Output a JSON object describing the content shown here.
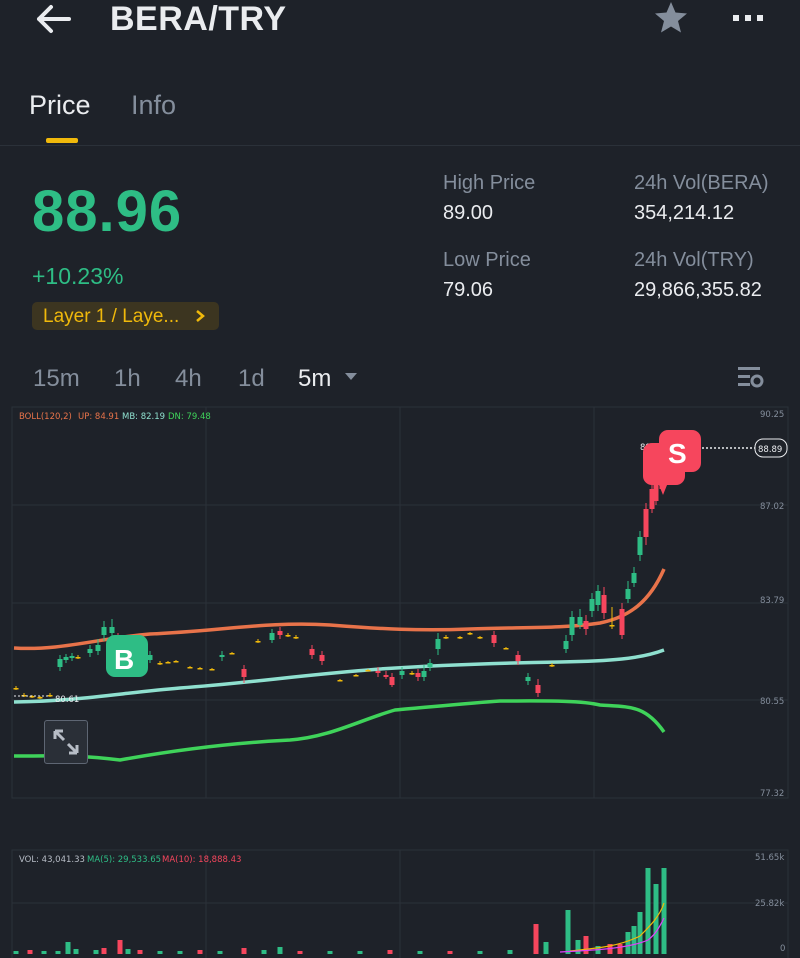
{
  "header": {
    "title": "BERA/TRY",
    "back_icon": "arrow-left-icon",
    "favorite_icon": "star-icon",
    "more_icon": "more-horizontal-icon"
  },
  "tabs": [
    {
      "label": "Price",
      "active": true
    },
    {
      "label": "Info",
      "active": false
    }
  ],
  "ticker": {
    "last_price": "88.96",
    "change_pct": "+10.23%",
    "tag": "Layer 1 / Laye...",
    "high_label": "High Price",
    "high_value": "89.00",
    "low_label": "Low Price",
    "low_value": "79.06",
    "vol_base_label": "24h Vol(BERA)",
    "vol_base_value": "354,214.12",
    "vol_quote_label": "24h Vol(TRY)",
    "vol_quote_value": "29,866,355.82"
  },
  "intervals": [
    "15m",
    "1h",
    "4h",
    "1d",
    "5m"
  ],
  "selected_interval": "5m",
  "chart_legend": {
    "boll": "BOLL(120,2)",
    "up": "UP: 84.91",
    "mb": "MB: 82.19",
    "dn": "DN: 79.48"
  },
  "price_axis": [
    "90.25",
    "87.02",
    "83.79",
    "80.55",
    "77.32"
  ],
  "current_price_label": "88.89",
  "high_marker": "89",
  "low_marker": "80.61",
  "trade_markers": {
    "buy": "B",
    "sell": "S"
  },
  "volume_legend": {
    "vol": "VOL: 43,041.33",
    "ma5": "MA(5): 29,533.65",
    "ma10": "MA(10): 18,888.43"
  },
  "volume_axis": [
    "51.65k",
    "25.82k",
    "0"
  ],
  "colors": {
    "up": "#2ebd85",
    "down": "#f6465d",
    "accent": "#f0b90b",
    "boll_up": "#e8734a",
    "boll_mb": "#8fe0cf",
    "boll_dn": "#3fd35a",
    "background": "#1e2229"
  }
}
